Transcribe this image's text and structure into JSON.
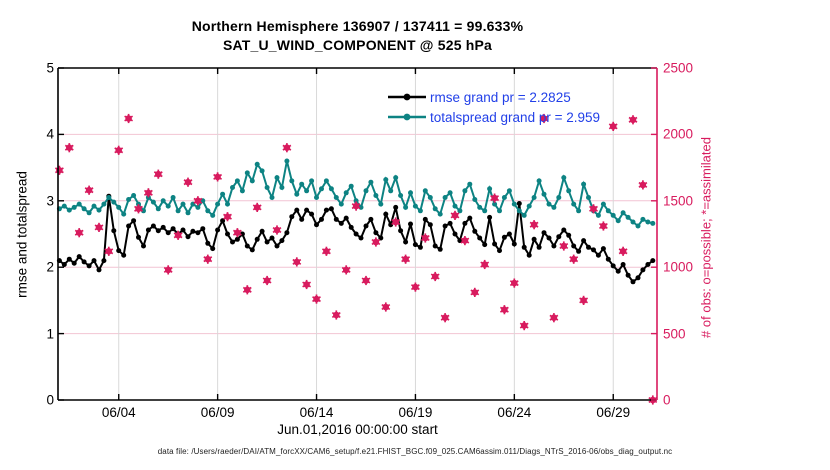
{
  "title": {
    "line1": "Northern Hemisphere 136907 / 137411 = 99.633%",
    "line2": "SAT_U_WIND_COMPONENT @ 525 hPa"
  },
  "footer": {
    "text": "data file: /Users/raeder/DAI/ATM_forcXX/CAM6_setup/f.e21.FHIST_BGC.f09_025.CAM6assim.011/Diags_NTrS_2016-06/obs_diag_output.nc"
  },
  "colors": {
    "rmse": "#000000",
    "totalspread": "#0d8383",
    "obs": "#d81b5e",
    "legend_text": "#2240e8",
    "grid_h": "#f2c4d3",
    "grid_v": "#d8d8d8",
    "axis": "#000000"
  },
  "chart_data": {
    "type": "line",
    "title": "Northern Hemisphere 136907 / 137411 = 99.633% | SAT_U_WIND_COMPONENT @ 525 hPa",
    "xlabel": "Jun.01,2016 00:00:00 start",
    "x_axis": {
      "range_days": [
        0,
        30.2
      ],
      "tick_days": [
        3,
        8,
        13,
        18,
        23,
        28
      ],
      "tick_labels": [
        "06/04",
        "06/09",
        "06/14",
        "06/19",
        "06/24",
        "06/29"
      ]
    },
    "left_axis": {
      "label": "rmse and totalspread",
      "ticks": [
        0,
        1,
        2,
        3,
        4,
        5
      ],
      "range": [
        0,
        5
      ],
      "grid_at": [
        1,
        2,
        3,
        4
      ]
    },
    "right_axis": {
      "label": "# of obs: o=possible; *=assimilated",
      "ticks": [
        0,
        500,
        1000,
        1500,
        2000,
        2500
      ],
      "range": [
        0,
        2500
      ],
      "color": "#d81b5e"
    },
    "series": [
      {
        "name": "rmse",
        "legend": "rmse grand pr = 2.2825",
        "grand_mean": 2.2825,
        "color": "#000000",
        "axis": "left",
        "interval_days": 0.25,
        "values": [
          2.1,
          2.04,
          2.12,
          2.06,
          2.16,
          2.08,
          2.02,
          2.1,
          1.96,
          2.1,
          3.07,
          2.55,
          2.25,
          2.18,
          2.62,
          2.7,
          2.45,
          2.32,
          2.56,
          2.62,
          2.55,
          2.6,
          2.52,
          2.58,
          2.5,
          2.56,
          2.46,
          2.54,
          2.52,
          2.58,
          2.36,
          2.28,
          2.56,
          2.7,
          2.5,
          2.38,
          2.42,
          2.5,
          2.32,
          2.26,
          2.42,
          2.54,
          2.38,
          2.44,
          2.32,
          2.4,
          2.52,
          2.76,
          2.86,
          2.72,
          2.86,
          2.8,
          2.64,
          2.72,
          2.86,
          2.88,
          2.72,
          2.66,
          2.74,
          2.6,
          2.5,
          2.44,
          2.62,
          2.72,
          2.52,
          2.44,
          2.8,
          2.64,
          2.9,
          2.55,
          2.38,
          2.65,
          2.34,
          2.3,
          2.72,
          2.64,
          2.32,
          2.27,
          2.62,
          2.66,
          2.5,
          2.4,
          2.66,
          2.74,
          2.54,
          2.44,
          2.34,
          2.75,
          2.35,
          2.25,
          2.45,
          2.5,
          2.35,
          2.96,
          2.3,
          2.18,
          2.42,
          2.3,
          2.52,
          2.44,
          2.32,
          2.46,
          2.56,
          2.48,
          2.32,
          2.24,
          2.4,
          2.3,
          2.26,
          2.18,
          2.28,
          2.12,
          2.02,
          1.94,
          2.04,
          1.88,
          1.78,
          1.84,
          1.96,
          2.04,
          2.1
        ]
      },
      {
        "name": "totalspread",
        "legend": "totalspread grand pr = 2.959",
        "grand_mean": 2.959,
        "color": "#0d8383",
        "axis": "left",
        "interval_days": 0.25,
        "values": [
          2.88,
          2.92,
          2.86,
          2.9,
          2.95,
          2.88,
          2.82,
          2.92,
          2.86,
          2.95,
          3.05,
          2.98,
          2.9,
          2.8,
          3.02,
          3.08,
          2.95,
          2.85,
          3.05,
          2.98,
          2.88,
          3.0,
          2.92,
          3.05,
          2.85,
          2.95,
          2.82,
          2.95,
          2.9,
          3.0,
          2.85,
          2.78,
          2.95,
          3.1,
          2.95,
          3.2,
          3.3,
          3.15,
          3.42,
          3.3,
          3.55,
          3.45,
          3.2,
          3.05,
          3.35,
          3.2,
          3.6,
          3.3,
          3.1,
          3.25,
          3.15,
          3.3,
          3.05,
          3.18,
          3.3,
          3.18,
          3.05,
          2.95,
          3.12,
          3.22,
          3.0,
          2.9,
          3.15,
          3.28,
          3.08,
          2.95,
          3.32,
          3.15,
          3.35,
          3.08,
          2.9,
          3.12,
          2.92,
          2.85,
          3.15,
          3.05,
          2.88,
          2.8,
          3.05,
          3.12,
          2.92,
          2.85,
          3.15,
          3.25,
          3.02,
          2.9,
          2.85,
          3.18,
          2.95,
          2.85,
          3.05,
          3.15,
          2.95,
          2.85,
          2.78,
          2.92,
          3.05,
          3.3,
          3.1,
          2.95,
          2.9,
          3.05,
          3.35,
          3.15,
          2.95,
          2.85,
          3.25,
          3.05,
          2.85,
          2.78,
          2.95,
          2.85,
          2.78,
          2.7,
          2.82,
          2.75,
          2.68,
          2.62,
          2.72,
          2.68,
          2.66
        ]
      }
    ],
    "obs_counts": {
      "name": "obs-count",
      "marker": "o-and-asterisk-overlapping",
      "color": "#d81b5e",
      "axis": "right",
      "interval_days": 0.5,
      "values": [
        1730,
        1900,
        1260,
        1580,
        1300,
        1120,
        1880,
        2120,
        1440,
        1560,
        1700,
        980,
        1240,
        1640,
        1500,
        1060,
        1680,
        1380,
        1260,
        830,
        1450,
        900,
        1280,
        1900,
        1040,
        870,
        760,
        1120,
        640,
        980,
        1460,
        900,
        1190,
        700,
        1340,
        1060,
        850,
        1220,
        930,
        620,
        1390,
        1200,
        810,
        1020,
        1520,
        680,
        880,
        560,
        1320,
        2120,
        620,
        1160,
        1060,
        750,
        1440,
        1310,
        2060,
        1120,
        2110,
        1620,
        0
      ]
    }
  }
}
